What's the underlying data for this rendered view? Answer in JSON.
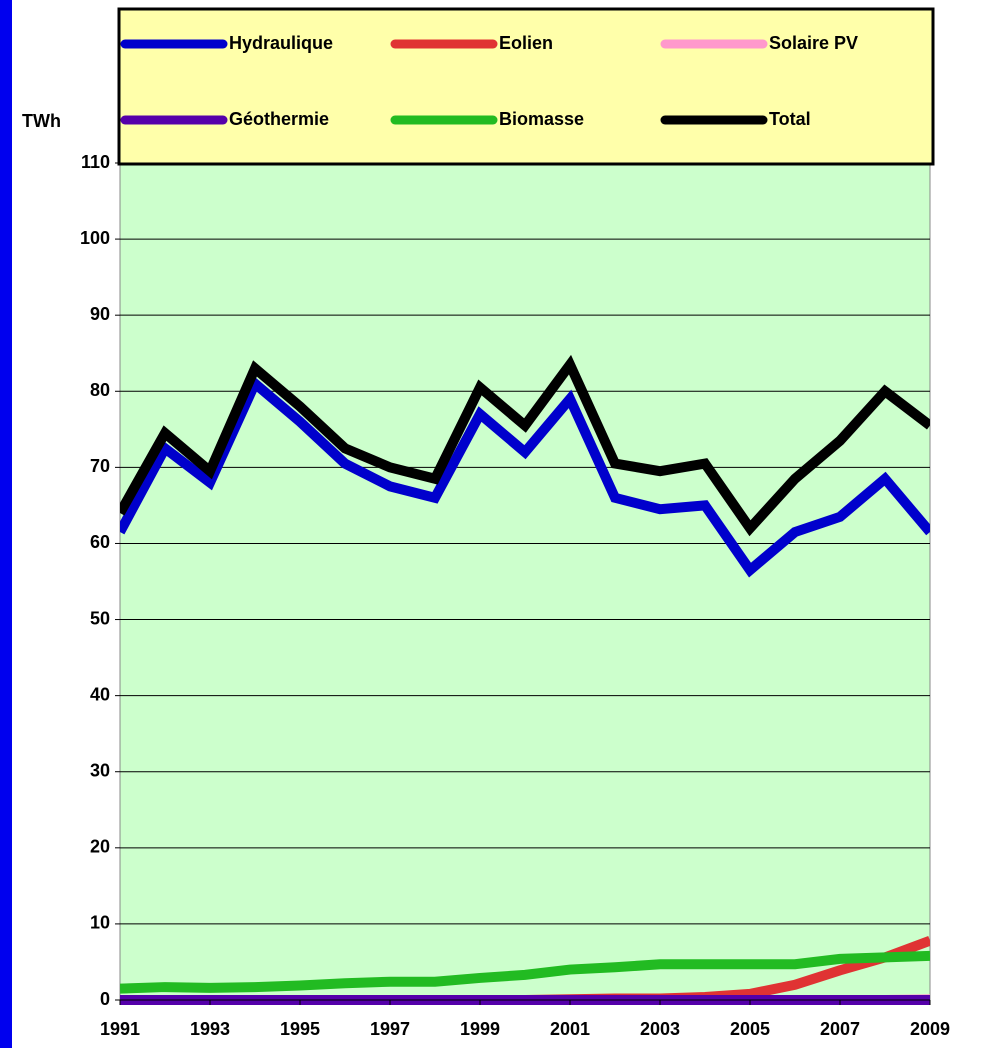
{
  "chart_data": {
    "type": "line",
    "y_label": "TWh",
    "x": [
      1991,
      1992,
      1993,
      1994,
      1995,
      1996,
      1997,
      1998,
      1999,
      2000,
      2001,
      2002,
      2003,
      2004,
      2005,
      2006,
      2007,
      2008,
      2009
    ],
    "xlim": [
      1991,
      2009
    ],
    "xticks": [
      1991,
      1993,
      1995,
      1997,
      1999,
      2001,
      2003,
      2005,
      2007,
      2009
    ],
    "ylim": [
      0,
      110
    ],
    "yticks": [
      0,
      10,
      20,
      30,
      40,
      50,
      60,
      70,
      80,
      90,
      100,
      110
    ],
    "grid": true,
    "legend": "top",
    "series": [
      {
        "name": "Hydraulique",
        "color": "#0000cc",
        "values": [
          61.5,
          72.5,
          68,
          81,
          76,
          70.5,
          67.5,
          66,
          77,
          72,
          79,
          66,
          64.5,
          65,
          56.5,
          61.5,
          63.5,
          68.5,
          61.5
        ]
      },
      {
        "name": "Eolien",
        "color": "#e03333",
        "values": [
          0,
          0,
          0,
          0,
          0,
          0,
          0,
          0,
          0,
          0,
          0.1,
          0.2,
          0.2,
          0.4,
          0.8,
          2,
          3.9,
          5.6,
          7.8
        ]
      },
      {
        "name": "Solaire PV",
        "color": "#ff99cc",
        "values": [
          0,
          0,
          0,
          0,
          0,
          0,
          0,
          0,
          0,
          0,
          0,
          0,
          0,
          0,
          0,
          0,
          0,
          0,
          0.1
        ]
      },
      {
        "name": "Géothermie",
        "color": "#5500aa",
        "values": [
          0,
          0,
          0,
          0,
          0,
          0,
          0,
          0,
          0,
          0,
          0,
          0,
          0,
          0,
          0,
          0,
          0,
          0,
          0
        ]
      },
      {
        "name": "Biomasse",
        "color": "#22bb22",
        "values": [
          1.5,
          1.7,
          1.6,
          1.7,
          1.9,
          2.2,
          2.4,
          2.4,
          2.9,
          3.3,
          4,
          4.3,
          4.7,
          4.7,
          4.7,
          4.7,
          5.4,
          5.6,
          5.8
        ]
      },
      {
        "name": "Total",
        "color": "#000000",
        "values": [
          64,
          74.5,
          69.5,
          83,
          78,
          72.5,
          70,
          68.5,
          80.5,
          75.5,
          83.5,
          70.5,
          69.5,
          70.5,
          62,
          68.5,
          73.5,
          80,
          75.5
        ]
      }
    ]
  }
}
